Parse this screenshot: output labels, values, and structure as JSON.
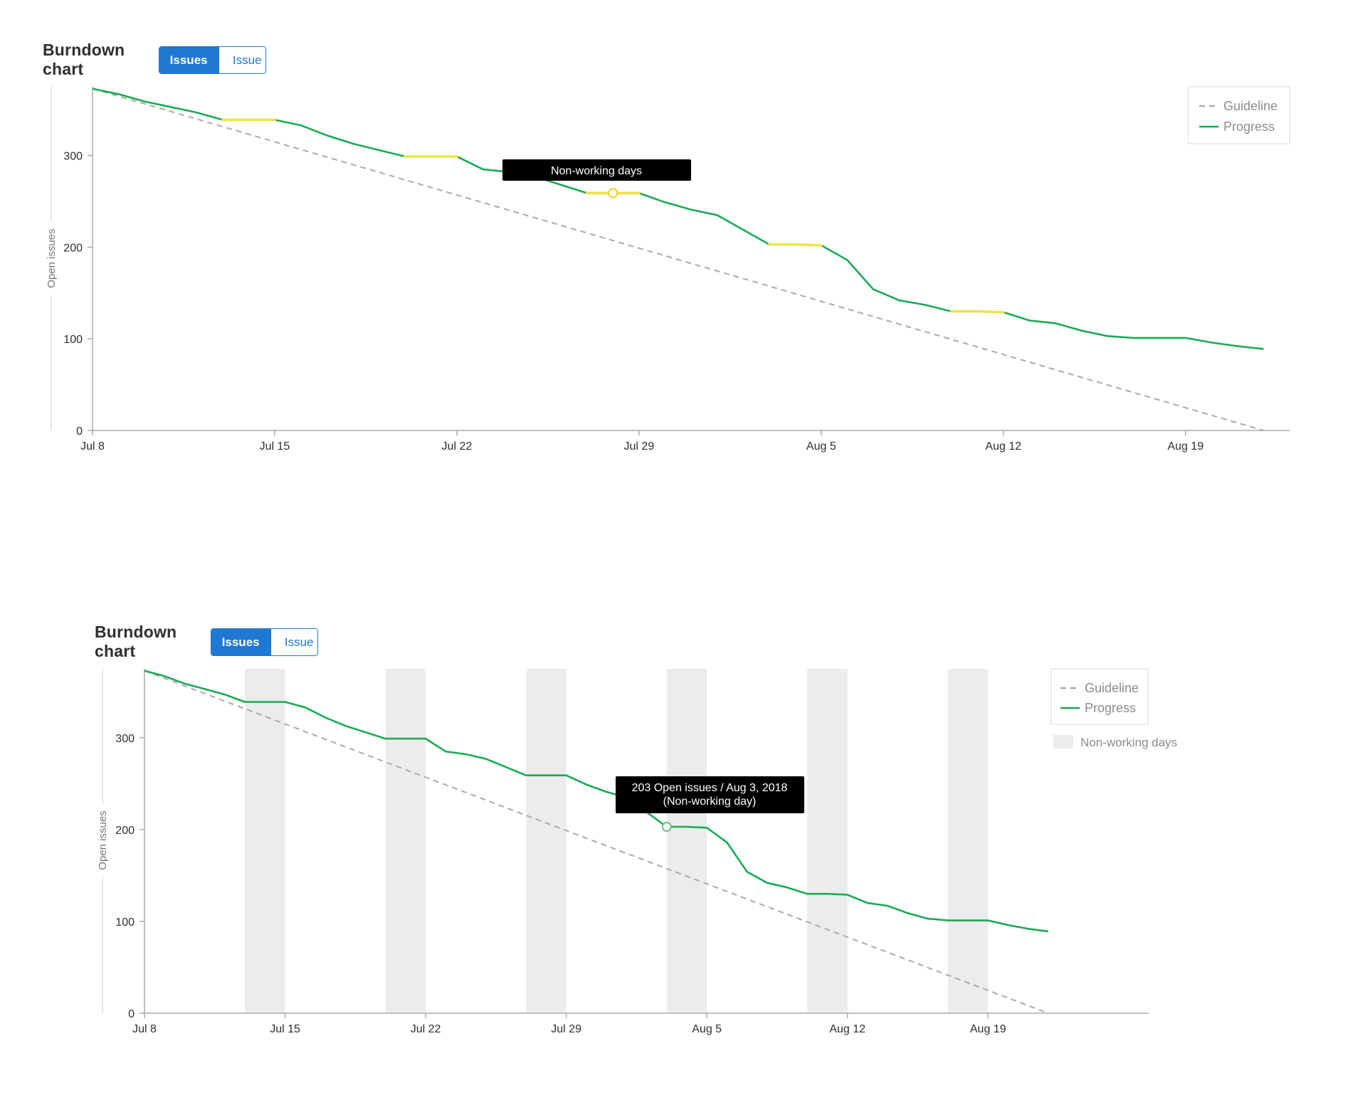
{
  "chart_data": [
    {
      "type": "line",
      "title": "Burndown chart",
      "toggle": {
        "options": [
          "Issues",
          "Issue weight"
        ],
        "selected": "Issues"
      },
      "ylabel": "Open issues",
      "ylim": [
        0,
        375
      ],
      "yticks": [
        0,
        100,
        200,
        300
      ],
      "xlim": [
        "2018-07-08",
        "2018-08-23"
      ],
      "xticks": [
        "2018-07-08",
        "2018-07-15",
        "2018-07-22",
        "2018-07-29",
        "2018-08-05",
        "2018-08-12",
        "2018-08-19"
      ],
      "xtick_labels": [
        "Jul 8",
        "Jul 15",
        "Jul 22",
        "Jul 29",
        "Aug 5",
        "Aug 12",
        "Aug 19"
      ],
      "legend": {
        "position": "top-right",
        "entries": [
          "Guideline",
          "Progress"
        ]
      },
      "series": [
        {
          "name": "Guideline",
          "style": "dashed",
          "color": "#aaaaaa",
          "x": [
            "2018-07-08",
            "2018-08-22"
          ],
          "y": [
            373,
            0
          ]
        },
        {
          "name": "Progress",
          "style": "solid",
          "color": "#1aaa55",
          "x": [
            "2018-07-08",
            "2018-07-09",
            "2018-07-10",
            "2018-07-11",
            "2018-07-12",
            "2018-07-13",
            "2018-07-14",
            "2018-07-15",
            "2018-07-16",
            "2018-07-17",
            "2018-07-18",
            "2018-07-19",
            "2018-07-20",
            "2018-07-21",
            "2018-07-22",
            "2018-07-23",
            "2018-07-24",
            "2018-07-25",
            "2018-07-26",
            "2018-07-27",
            "2018-07-28",
            "2018-07-29",
            "2018-07-30",
            "2018-07-31",
            "2018-08-01",
            "2018-08-02",
            "2018-08-03",
            "2018-08-04",
            "2018-08-05",
            "2018-08-06",
            "2018-08-07",
            "2018-08-08",
            "2018-08-09",
            "2018-08-10",
            "2018-08-11",
            "2018-08-12",
            "2018-08-13",
            "2018-08-14",
            "2018-08-15",
            "2018-08-16",
            "2018-08-17",
            "2018-08-18",
            "2018-08-19",
            "2018-08-20",
            "2018-08-21",
            "2018-08-22"
          ],
          "y": [
            373,
            367,
            359,
            353,
            347,
            339,
            339,
            339,
            333,
            322,
            313,
            306,
            299,
            299,
            299,
            285,
            282,
            277,
            268,
            259,
            259,
            259,
            249,
            241,
            235,
            219,
            203,
            203,
            202,
            186,
            154,
            142,
            137,
            130,
            130,
            129,
            120,
            117,
            109,
            103,
            101,
            101,
            101,
            96,
            92,
            89
          ]
        }
      ],
      "highlight_dates": [
        "2018-07-13",
        "2018-07-14",
        "2018-07-15",
        "2018-07-20",
        "2018-07-21",
        "2018-07-22",
        "2018-07-27",
        "2018-07-28",
        "2018-07-29",
        "2018-08-03",
        "2018-08-04",
        "2018-08-05",
        "2018-08-10",
        "2018-08-11",
        "2018-08-12"
      ],
      "hover": {
        "date": "2018-07-28",
        "value": 259
      },
      "tooltip": "Non-working days"
    },
    {
      "type": "line",
      "title": "Burndown chart",
      "toggle": {
        "options": [
          "Issues",
          "Issue weight"
        ],
        "selected": "Issues"
      },
      "ylabel": "Open issues",
      "ylim": [
        0,
        375
      ],
      "yticks": [
        0,
        100,
        200,
        300
      ],
      "xlim": [
        "2018-07-08",
        "2018-08-27"
      ],
      "xticks": [
        "2018-07-08",
        "2018-07-15",
        "2018-07-22",
        "2018-07-29",
        "2018-08-05",
        "2018-08-12",
        "2018-08-19"
      ],
      "xtick_labels": [
        "Jul 8",
        "Jul 15",
        "Jul 22",
        "Jul 29",
        "Aug 5",
        "Aug 12",
        "Aug 19"
      ],
      "legend": {
        "position": "top-right",
        "entries": [
          "Guideline",
          "Progress",
          "Non-working days"
        ]
      },
      "non_working_days": [
        [
          "2018-07-13",
          "2018-07-15"
        ],
        [
          "2018-07-20",
          "2018-07-22"
        ],
        [
          "2018-07-27",
          "2018-07-29"
        ],
        [
          "2018-08-03",
          "2018-08-05"
        ],
        [
          "2018-08-10",
          "2018-08-12"
        ],
        [
          "2018-08-17",
          "2018-08-19"
        ]
      ],
      "series": [
        {
          "name": "Guideline",
          "style": "dashed",
          "color": "#aaaaaa",
          "x": [
            "2018-07-08",
            "2018-08-22"
          ],
          "y": [
            373,
            0
          ]
        },
        {
          "name": "Progress",
          "style": "solid",
          "color": "#1aaa55",
          "x": [
            "2018-07-08",
            "2018-07-09",
            "2018-07-10",
            "2018-07-11",
            "2018-07-12",
            "2018-07-13",
            "2018-07-14",
            "2018-07-15",
            "2018-07-16",
            "2018-07-17",
            "2018-07-18",
            "2018-07-19",
            "2018-07-20",
            "2018-07-21",
            "2018-07-22",
            "2018-07-23",
            "2018-07-24",
            "2018-07-25",
            "2018-07-26",
            "2018-07-27",
            "2018-07-28",
            "2018-07-29",
            "2018-07-30",
            "2018-07-31",
            "2018-08-01",
            "2018-08-02",
            "2018-08-03",
            "2018-08-04",
            "2018-08-05",
            "2018-08-06",
            "2018-08-07",
            "2018-08-08",
            "2018-08-09",
            "2018-08-10",
            "2018-08-11",
            "2018-08-12",
            "2018-08-13",
            "2018-08-14",
            "2018-08-15",
            "2018-08-16",
            "2018-08-17",
            "2018-08-18",
            "2018-08-19",
            "2018-08-20",
            "2018-08-21",
            "2018-08-22"
          ],
          "y": [
            373,
            367,
            359,
            353,
            347,
            339,
            339,
            339,
            333,
            322,
            313,
            306,
            299,
            299,
            299,
            285,
            282,
            277,
            268,
            259,
            259,
            259,
            249,
            241,
            235,
            219,
            203,
            203,
            202,
            186,
            154,
            142,
            137,
            130,
            130,
            129,
            120,
            117,
            109,
            103,
            101,
            101,
            101,
            96,
            92,
            89
          ]
        }
      ],
      "hover": {
        "date": "2018-08-03",
        "value": 203
      },
      "tooltip": [
        "203 Open issues / Aug 3, 2018",
        "(Non-working day)"
      ]
    }
  ]
}
